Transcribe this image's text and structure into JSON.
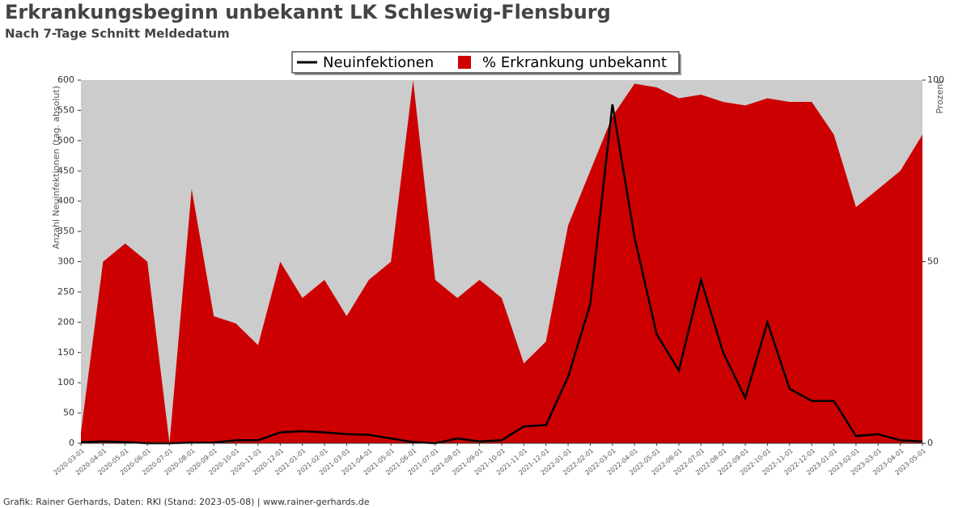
{
  "chart_data": {
    "type": "line-area",
    "title": "Erkrankungsbeginn unbekannt LK Schleswig-Flensburg",
    "subtitle": "Nach 7-Tage Schnitt Meldedatum",
    "ylabel": "Anzahl Neuinfektionen (tag. absolut)",
    "y2label": "Prozent",
    "footer": "Grafik: Rainer Gerhards, Daten: RKI (Stand: 2023-05-08) | www.rainer-gerhards.de",
    "categories": [
      "2020-03-01",
      "2020-04-01",
      "2020-05-01",
      "2020-06-01",
      "2020-07-01",
      "2020-08-01",
      "2020-09-01",
      "2020-10-01",
      "2020-11-01",
      "2020-12-01",
      "2021-01-01",
      "2021-02-01",
      "2021-03-01",
      "2021-04-01",
      "2021-05-01",
      "2021-06-01",
      "2021-07-01",
      "2021-08-01",
      "2021-09-01",
      "2021-10-01",
      "2021-11-01",
      "2021-12-01",
      "2022-01-01",
      "2022-02-01",
      "2022-03-01",
      "2022-04-01",
      "2022-05-01",
      "2022-06-01",
      "2022-07-01",
      "2022-08-01",
      "2022-09-01",
      "2022-10-01",
      "2022-11-01",
      "2022-12-01",
      "2023-01-01",
      "2023-02-01",
      "2023-03-01",
      "2023-04-01",
      "2023-05-01"
    ],
    "series": [
      {
        "name": "Neuinfektionen",
        "color": "#000000",
        "axis": "y",
        "values": [
          2,
          3,
          2,
          0,
          0,
          1,
          1,
          5,
          5,
          18,
          20,
          18,
          15,
          14,
          8,
          2,
          0,
          8,
          3,
          5,
          28,
          30,
          110,
          230,
          560,
          340,
          180,
          120,
          270,
          150,
          75,
          200,
          90,
          70,
          70,
          12,
          15,
          5,
          3
        ]
      },
      {
        "name": "% Erkrankung unbekannt",
        "color": "#cc0000",
        "axis": "y2",
        "values": [
          3,
          50,
          55,
          50,
          0,
          70,
          35,
          33,
          27,
          50,
          40,
          45,
          35,
          45,
          50,
          100,
          45,
          40,
          45,
          40,
          22,
          28,
          60,
          75,
          90,
          99,
          98,
          95,
          96,
          94,
          93,
          95,
          94,
          94,
          85,
          65,
          70,
          75,
          85
        ]
      }
    ],
    "ylim": [
      0,
      600
    ],
    "yticks": [
      0,
      50,
      100,
      150,
      200,
      250,
      300,
      350,
      400,
      450,
      500,
      550,
      600
    ],
    "y2lim": [
      0,
      100
    ],
    "y2ticks": [
      0,
      50,
      100
    ],
    "background": "#cccccc"
  }
}
